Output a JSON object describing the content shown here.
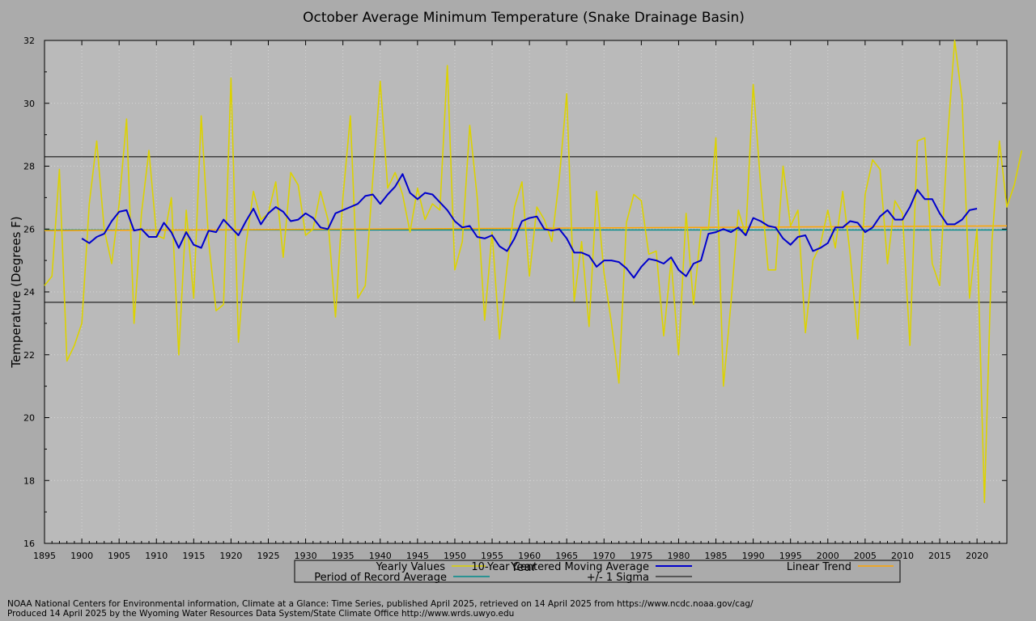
{
  "chart_data": {
    "type": "line",
    "title": "October Average Minimum Temperature (Snake Drainage Basin)",
    "xlabel": "Year",
    "ylabel": "Temperature (Degrees F)",
    "xlim": [
      1895,
      2024
    ],
    "ylim": [
      16,
      32
    ],
    "xticks": [
      1895,
      1900,
      1905,
      1910,
      1915,
      1920,
      1925,
      1930,
      1935,
      1940,
      1945,
      1950,
      1955,
      1960,
      1965,
      1970,
      1975,
      1980,
      1985,
      1990,
      1995,
      2000,
      2005,
      2010,
      2015,
      2020
    ],
    "yticks": [
      16,
      18,
      20,
      22,
      24,
      26,
      28,
      30,
      32
    ],
    "grid": true,
    "colors": {
      "yearly": "#dcd200",
      "moving": "#0000cc",
      "trend": "#ffa500",
      "por": "#008b8b",
      "sigma": "#000000",
      "plot_bg": "#bababa",
      "page_bg": "#ababab"
    },
    "series": [
      {
        "name": "Yearly Values",
        "x_start": 1895,
        "values": [
          24.2,
          24.5,
          27.9,
          21.8,
          22.3,
          23.0,
          26.8,
          28.8,
          26.0,
          24.9,
          26.8,
          29.5,
          23.0,
          26.5,
          28.5,
          25.8,
          25.7,
          27.0,
          22.0,
          26.6,
          23.8,
          29.6,
          25.6,
          23.4,
          23.6,
          30.8,
          22.4,
          25.5,
          27.2,
          26.3,
          26.5,
          27.5,
          25.1,
          27.8,
          27.4,
          25.8,
          26.0,
          27.2,
          26.3,
          23.2,
          27.0,
          29.6,
          23.8,
          24.2,
          27.6,
          30.7,
          27.3,
          27.8,
          27.1,
          25.9,
          27.3,
          26.3,
          26.8,
          26.6,
          31.2,
          24.7,
          25.6,
          29.3,
          27.0,
          23.1,
          25.9,
          22.5,
          24.8,
          26.7,
          27.5,
          24.5,
          26.7,
          26.3,
          25.6,
          27.6,
          30.3,
          23.7,
          25.6,
          22.9,
          27.2,
          24.6,
          23.0,
          21.1,
          26.2,
          27.1,
          26.9,
          25.2,
          25.3,
          22.6,
          25.0,
          22.0,
          26.5,
          23.6,
          26.0,
          26.0,
          28.9,
          21.0,
          23.6,
          26.6,
          25.8,
          30.6,
          27.4,
          24.7,
          24.7,
          28.0,
          26.1,
          26.6,
          22.7,
          25.0,
          25.5,
          26.6,
          25.4,
          27.2,
          25.2,
          22.5,
          27.1,
          28.2,
          27.9,
          24.9,
          26.9,
          26.5,
          22.3,
          28.8,
          28.9,
          24.9,
          24.2,
          28.7,
          32.0,
          30.1,
          23.8,
          26.0,
          17.3,
          25.6,
          28.8,
          26.7,
          27.4,
          28.5
        ]
      },
      {
        "name": "10-Year Centered Moving Average",
        "x_start": 1900,
        "values": [
          25.7,
          25.55,
          25.75,
          25.85,
          26.25,
          26.55,
          26.6,
          25.95,
          26.0,
          25.75,
          25.75,
          26.2,
          25.9,
          25.4,
          25.9,
          25.5,
          25.4,
          25.95,
          25.9,
          26.3,
          26.05,
          25.8,
          26.25,
          26.65,
          26.15,
          26.5,
          26.7,
          26.55,
          26.25,
          26.3,
          26.5,
          26.35,
          26.05,
          26.0,
          26.5,
          26.6,
          26.7,
          26.8,
          27.05,
          27.1,
          26.8,
          27.1,
          27.35,
          27.75,
          27.15,
          26.95,
          27.15,
          27.1,
          26.85,
          26.6,
          26.25,
          26.05,
          26.1,
          25.75,
          25.7,
          25.8,
          25.45,
          25.3,
          25.7,
          26.25,
          26.35,
          26.4,
          26.0,
          25.95,
          26.0,
          25.7,
          25.25,
          25.25,
          25.15,
          24.8,
          25.0,
          25.0,
          24.95,
          24.75,
          24.45,
          24.8,
          25.05,
          25.0,
          24.9,
          25.1,
          24.7,
          24.5,
          24.9,
          25.0,
          25.85,
          25.9,
          26.0,
          25.9,
          26.05,
          25.8,
          26.35,
          26.25,
          26.1,
          26.05,
          25.7,
          25.5,
          25.75,
          25.8,
          25.3,
          25.4,
          25.55,
          26.05,
          26.05,
          26.25,
          26.2,
          25.9,
          26.05,
          26.4,
          26.6,
          26.3,
          26.3,
          26.7,
          27.25,
          26.95,
          26.95,
          26.5,
          26.15,
          26.15,
          26.3,
          26.6,
          26.65
        ]
      },
      {
        "name": "Linear Trend",
        "x": [
          1895,
          2024
        ],
        "values": [
          25.95,
          26.1
        ]
      },
      {
        "name": "Period of Record Average",
        "value": 25.97
      },
      {
        "name": "+/- 1 Sigma",
        "upper": 28.3,
        "lower": 23.67
      }
    ],
    "legend_position": "bottom-center"
  },
  "legend": {
    "yearly": "Yearly Values",
    "moving": "10-Year Centered Moving Average",
    "trend": "Linear Trend",
    "por": "Period of Record Average",
    "sigma": "+/- 1 Sigma"
  },
  "footer": {
    "line1": "NOAA National Centers for Environmental information, Climate at a Glance: Time Series, published April 2025, retrieved on 14 April 2025 from https://www.ncdc.noaa.gov/cag/",
    "line2": "Produced 14 April 2025 by the Wyoming Water Resources Data System/State Climate Office http://www.wrds.uwyo.edu"
  }
}
